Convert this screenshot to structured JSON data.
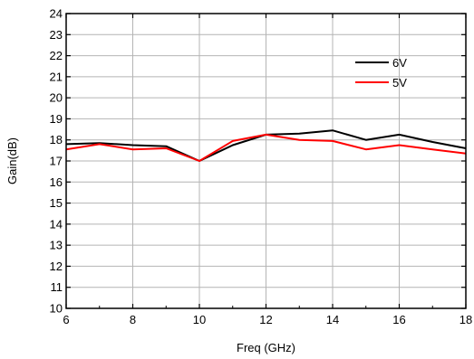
{
  "chart_data": {
    "type": "line",
    "xlabel": "Freq (GHz)",
    "ylabel": "Gain(dB)",
    "xlim": [
      6,
      18
    ],
    "ylim": [
      10,
      24
    ],
    "xticks": [
      6,
      8,
      10,
      12,
      14,
      16,
      18
    ],
    "yticks": [
      10,
      11,
      12,
      13,
      14,
      15,
      16,
      17,
      18,
      19,
      20,
      21,
      22,
      23,
      24
    ],
    "grid": true,
    "legend_position": "top-right",
    "series": [
      {
        "name": "6V",
        "color": "#000000",
        "x": [
          6,
          7,
          8,
          9,
          10,
          11,
          12,
          13,
          14,
          15,
          16,
          17,
          18
        ],
        "y": [
          17.8,
          17.85,
          17.75,
          17.7,
          17.0,
          17.75,
          18.25,
          18.3,
          18.45,
          18.0,
          18.25,
          17.9,
          17.6
        ]
      },
      {
        "name": "5V",
        "color": "#ff0000",
        "x": [
          6,
          7,
          8,
          9,
          10,
          11,
          12,
          13,
          14,
          15,
          16,
          17,
          18
        ],
        "y": [
          17.55,
          17.8,
          17.55,
          17.6,
          17.0,
          17.95,
          18.25,
          18.0,
          17.95,
          17.55,
          17.75,
          17.55,
          17.35
        ]
      }
    ]
  }
}
